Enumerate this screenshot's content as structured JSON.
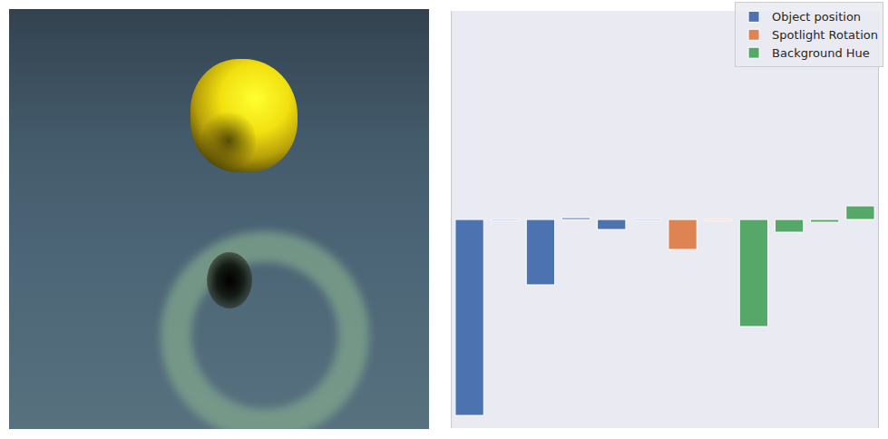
{
  "chart_data": {
    "type": "bar",
    "categories": [
      null,
      null,
      null,
      null,
      null,
      null,
      null,
      null,
      null,
      null,
      null,
      null
    ],
    "series": [
      {
        "name": "Object position",
        "color": "#4c72b0",
        "values": [
          -2.16,
          -0.01,
          -0.72,
          0.02,
          -0.11,
          -0.01,
          null,
          null,
          null,
          null,
          null,
          null
        ]
      },
      {
        "name": "Spotlight Rotation",
        "color": "#dd8452",
        "values": [
          null,
          null,
          null,
          null,
          null,
          null,
          -0.33,
          -0.01,
          null,
          null,
          null,
          null
        ]
      },
      {
        "name": "Background Hue",
        "color": "#55a868",
        "values": [
          null,
          null,
          null,
          null,
          null,
          null,
          null,
          null,
          -1.18,
          -0.14,
          -0.03,
          0.15
        ]
      }
    ],
    "ylim": [
      -2.3,
      2.3
    ],
    "yticks": [],
    "tick_labels": false,
    "grid": false,
    "legend": "upper right"
  }
}
